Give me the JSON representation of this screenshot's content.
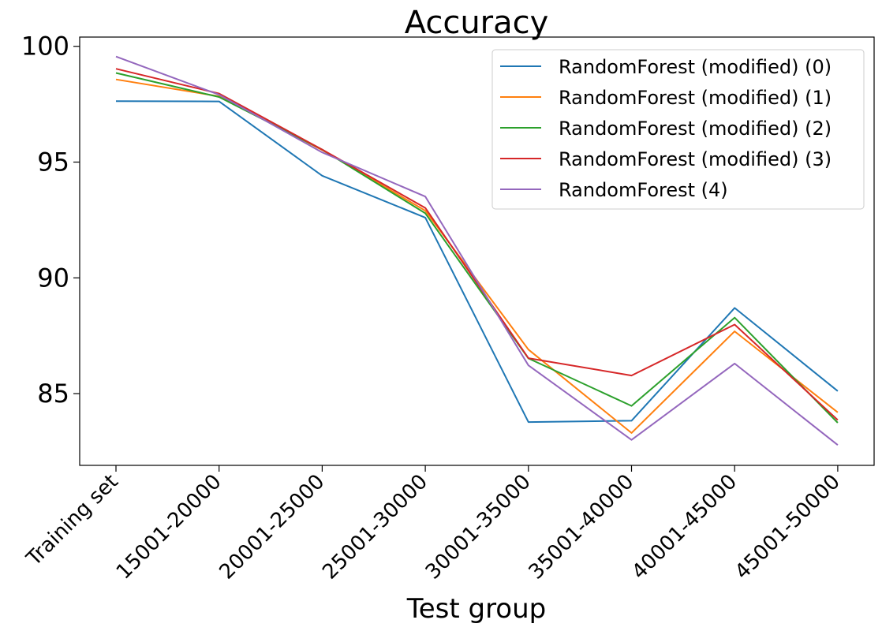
{
  "chart_data": {
    "type": "line",
    "title": "Accuracy",
    "xlabel": "Test group",
    "ylabel": "",
    "categories": [
      "Training set",
      "15001-20000",
      "20001-25000",
      "25001-30000",
      "30001-35000",
      "35001-40000",
      "40001-45000",
      "45001-50000"
    ],
    "ylim": [
      81.9,
      100.4
    ],
    "yticks": [
      85,
      90,
      95,
      100
    ],
    "grid": false,
    "legend_position": "top-right",
    "series": [
      {
        "name": "RandomForest (modified) (0)",
        "color": "#1f77b4",
        "values": [
          97.63,
          97.62,
          94.41,
          92.6,
          83.77,
          83.83,
          88.7,
          85.11
        ]
      },
      {
        "name": "RandomForest (modified) (1)",
        "color": "#ff7f0e",
        "values": [
          98.57,
          97.84,
          95.52,
          92.9,
          86.9,
          83.3,
          87.69,
          84.19
        ]
      },
      {
        "name": "RandomForest (modified) (2)",
        "color": "#2ca02c",
        "values": [
          98.85,
          97.81,
          95.54,
          92.79,
          86.52,
          84.47,
          88.28,
          83.74
        ]
      },
      {
        "name": "RandomForest (modified) (3)",
        "color": "#d62728",
        "values": [
          99.03,
          97.96,
          95.54,
          93.02,
          86.53,
          85.78,
          87.98,
          83.86
        ]
      },
      {
        "name": "RandomForest (4)",
        "color": "#9467bd",
        "values": [
          99.56,
          97.91,
          95.42,
          93.51,
          86.22,
          83.0,
          86.3,
          82.78
        ]
      }
    ]
  }
}
